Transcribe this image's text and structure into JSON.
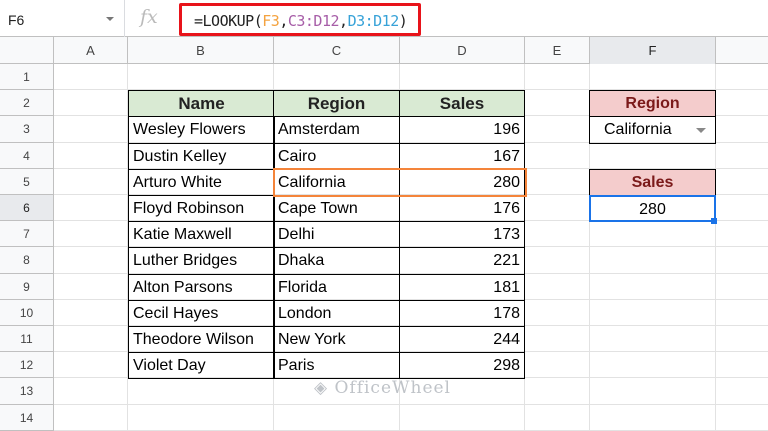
{
  "formula_bar": {
    "name_box": "F6",
    "fx": "fx",
    "formula_parts": [
      {
        "t": "=LOOKUP(",
        "c": "#222222"
      },
      {
        "t": "F3",
        "c": "#f4a340"
      },
      {
        "t": ",",
        "c": "#222222"
      },
      {
        "t": "C3:D12",
        "c": "#a75ea8"
      },
      {
        "t": ",",
        "c": "#222222"
      },
      {
        "t": "D3:D12",
        "c": "#37a2d8"
      },
      {
        "t": ")",
        "c": "#222222"
      }
    ]
  },
  "columns": [
    "A",
    "B",
    "C",
    "D",
    "E",
    "F"
  ],
  "rows": [
    "1",
    "2",
    "3",
    "4",
    "5",
    "6",
    "7",
    "8",
    "9",
    "10",
    "11",
    "12",
    "13",
    "14"
  ],
  "table": {
    "headers": [
      "Name",
      "Region",
      "Sales"
    ],
    "rows": [
      [
        "Wesley Flowers",
        "Amsterdam",
        "196"
      ],
      [
        "Dustin Kelley",
        "Cairo",
        "167"
      ],
      [
        "Arturo White",
        "California",
        "280"
      ],
      [
        "Floyd Robinson",
        "Cape Town",
        "176"
      ],
      [
        "Katie Maxwell",
        "Delhi",
        "173"
      ],
      [
        "Luther Bridges",
        "Dhaka",
        "221"
      ],
      [
        "Alton Parsons",
        "Florida",
        "181"
      ],
      [
        "Cecil Hayes",
        "London",
        "178"
      ],
      [
        "Theodore Wilson",
        "New York",
        "244"
      ],
      [
        "Violet Day",
        "Paris",
        "298"
      ]
    ]
  },
  "lookup": {
    "region_label": "Region",
    "region_value": "California",
    "sales_label": "Sales",
    "sales_value": "280"
  },
  "colors": {
    "highlight": "#f4843a",
    "selection": "#1a73e8",
    "table_header": "#d9ead3",
    "lookup_header": "#f4cccc"
  },
  "watermark": "OfficeWheel"
}
